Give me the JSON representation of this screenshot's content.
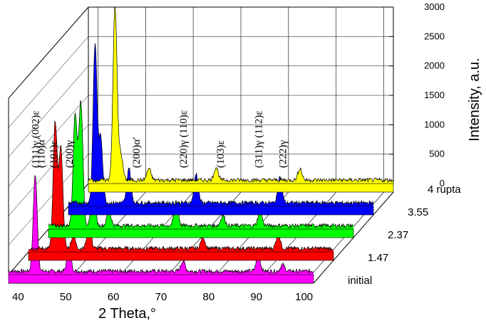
{
  "chart_data": {
    "type": "3d-waterfall-line",
    "xlabel": "2 Theta,°",
    "ylabel": "Intensity, a.u.",
    "xlim": [
      38,
      102
    ],
    "ylim": [
      0,
      3000
    ],
    "x_ticks": [
      40,
      50,
      60,
      70,
      80,
      90,
      100
    ],
    "y_ticks": [
      0,
      500,
      1000,
      1500,
      2000,
      2500,
      3000
    ],
    "peak_labels": [
      {
        "text": "(111)γ (002)ε",
        "x": 43.6
      },
      {
        "text": "(110)α'",
        "x": 44.8
      },
      {
        "text": "(101)ε",
        "x": 47.4
      },
      {
        "text": "(200)γ",
        "x": 50.7
      },
      {
        "text": "(200)α'",
        "x": 64.8
      },
      {
        "text": "(220)γ (110)ε",
        "x": 74.6
      },
      {
        "text": "(103)ε",
        "x": 82.4
      },
      {
        "text": "(311)γ (112)ε",
        "x": 90.4
      },
      {
        "text": "(222)γ",
        "x": 95.5
      }
    ],
    "series": [
      {
        "name": "initial",
        "color": "#ff00ff",
        "peaks": [
          {
            "x": 43.6,
            "y": 1650
          },
          {
            "x": 50.7,
            "y": 380
          },
          {
            "x": 74.6,
            "y": 180
          },
          {
            "x": 90.4,
            "y": 280
          },
          {
            "x": 95.5,
            "y": 110
          }
        ]
      },
      {
        "name": "1.47",
        "color": "#ff0000",
        "peaks": [
          {
            "x": 43.6,
            "y": 2150
          },
          {
            "x": 44.8,
            "y": 1700
          },
          {
            "x": 47.4,
            "y": 220
          },
          {
            "x": 50.7,
            "y": 450
          },
          {
            "x": 74.6,
            "y": 200
          },
          {
            "x": 90.4,
            "y": 250
          }
        ]
      },
      {
        "name": "2.37",
        "color": "#00ff00",
        "peaks": [
          {
            "x": 43.6,
            "y": 1900
          },
          {
            "x": 44.8,
            "y": 2100
          },
          {
            "x": 47.4,
            "y": 550
          },
          {
            "x": 50.7,
            "y": 250
          },
          {
            "x": 64.8,
            "y": 430
          },
          {
            "x": 74.6,
            "y": 180
          },
          {
            "x": 82.4,
            "y": 250
          }
        ]
      },
      {
        "name": "3.55",
        "color": "#0000ff",
        "peaks": [
          {
            "x": 43.6,
            "y": 2700
          },
          {
            "x": 44.8,
            "y": 1100
          },
          {
            "x": 50.7,
            "y": 600
          },
          {
            "x": 64.8,
            "y": 500
          },
          {
            "x": 82.4,
            "y": 450
          }
        ]
      },
      {
        "name": "4 rupta",
        "color": "#ffff00",
        "peaks": [
          {
            "x": 43.6,
            "y": 3000
          },
          {
            "x": 44.8,
            "y": 450
          },
          {
            "x": 50.7,
            "y": 200
          },
          {
            "x": 64.8,
            "y": 220
          },
          {
            "x": 82.4,
            "y": 200
          }
        ]
      }
    ]
  }
}
